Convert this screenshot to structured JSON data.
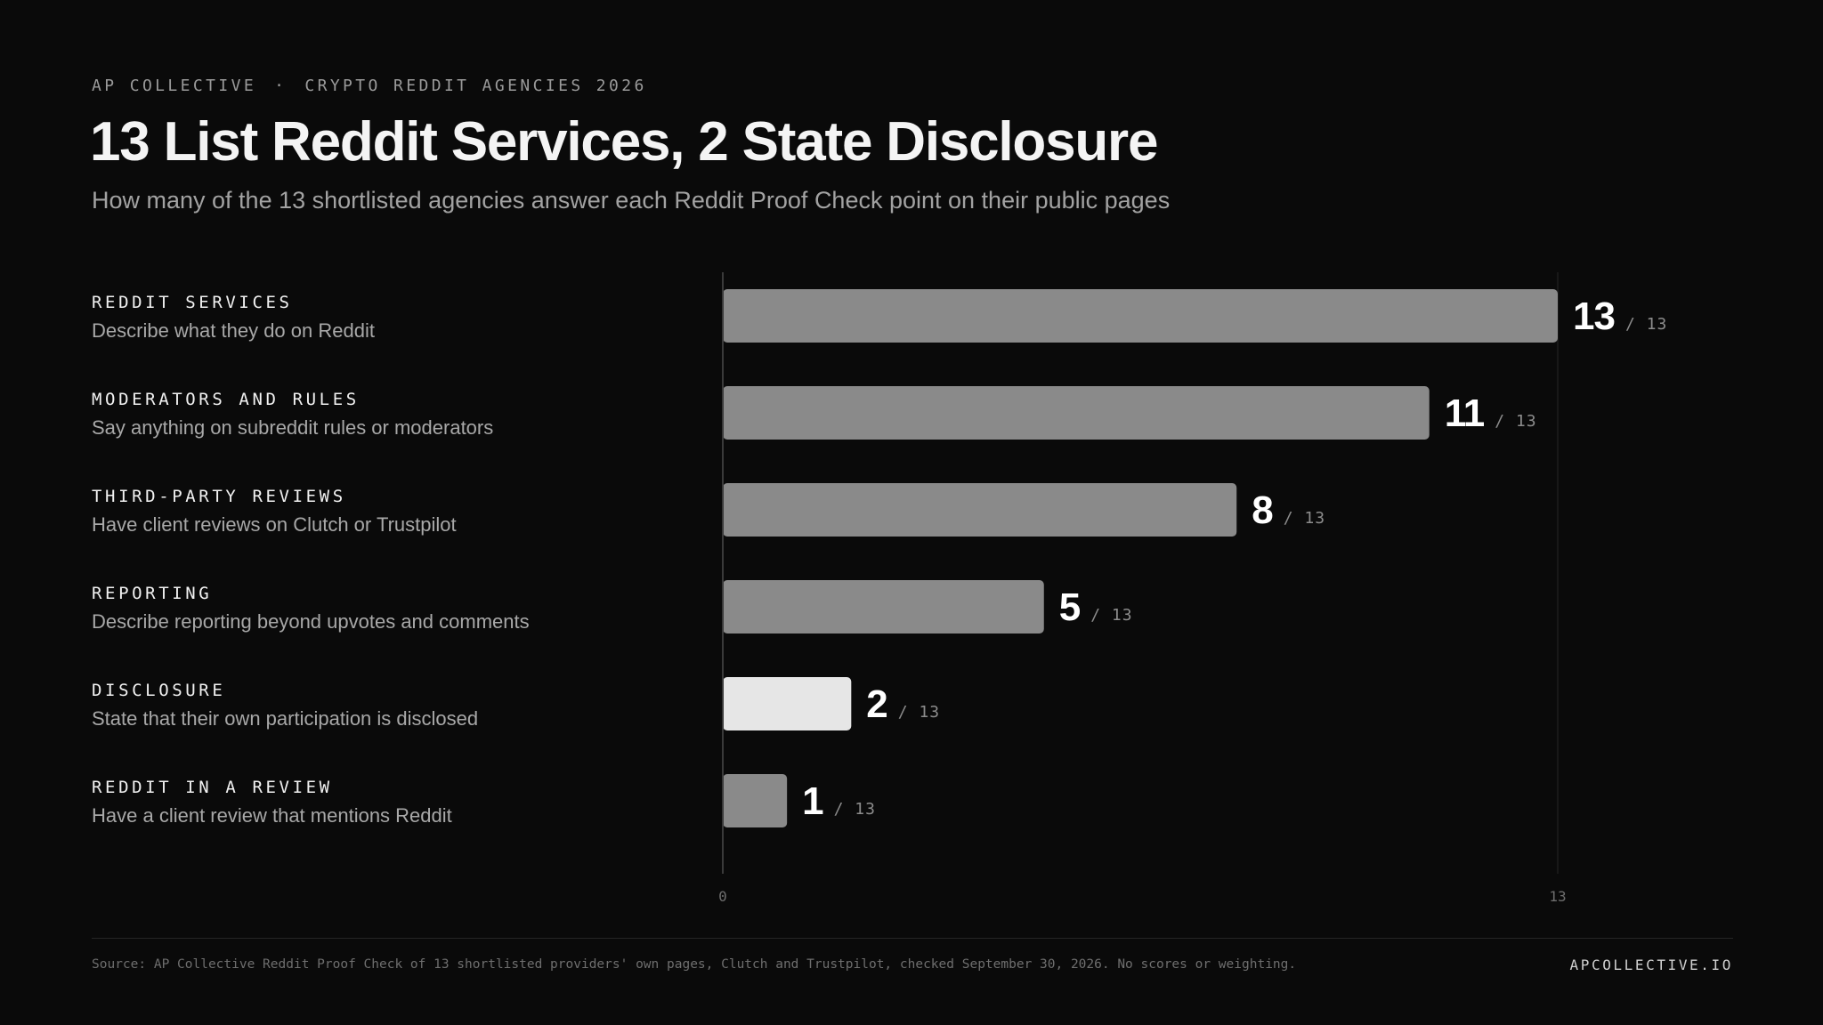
{
  "header": {
    "brand": "AP COLLECTIVE",
    "separator": "·",
    "series": "CRYPTO REDDIT AGENCIES 2026",
    "title": "13 List Reddit Services, 2 State Disclosure",
    "subtitle": "How many of the 13 shortlisted agencies answer each Reddit Proof Check point on their public pages"
  },
  "chart_data": {
    "type": "bar",
    "orientation": "horizontal",
    "total": 13,
    "total_label": "/ 13",
    "xlim": [
      0,
      13
    ],
    "x_ticks": [
      "0",
      "13"
    ],
    "grid": false,
    "categories": [
      {
        "name": "REDDIT SERVICES",
        "description": "Describe what they do on Reddit",
        "value": 13,
        "highlight": false
      },
      {
        "name": "MODERATORS AND RULES",
        "description": "Say anything on subreddit rules or moderators",
        "value": 11,
        "highlight": false
      },
      {
        "name": "THIRD-PARTY REVIEWS",
        "description": "Have client reviews on Clutch or Trustpilot",
        "value": 8,
        "highlight": false
      },
      {
        "name": "REPORTING",
        "description": "Describe reporting beyond upvotes and comments",
        "value": 5,
        "highlight": false
      },
      {
        "name": "DISCLOSURE",
        "description": "State that their own participation is disclosed",
        "value": 2,
        "highlight": true
      },
      {
        "name": "REDDIT IN A REVIEW",
        "description": "Have a client review that mentions Reddit",
        "value": 1,
        "highlight": false
      }
    ],
    "colors": {
      "bar": "#8a8a8a",
      "highlight": "#e6e6e6",
      "axis": "#3a3a3a",
      "value": "#ffffff",
      "total": "#8c8c8c"
    }
  },
  "footer": {
    "source": "Source: AP Collective Reddit Proof Check of 13 shortlisted providers' own pages, Clutch and Trustpilot, checked September 30, 2026. No scores or weighting.",
    "site": "APCOLLECTIVE.IO"
  }
}
